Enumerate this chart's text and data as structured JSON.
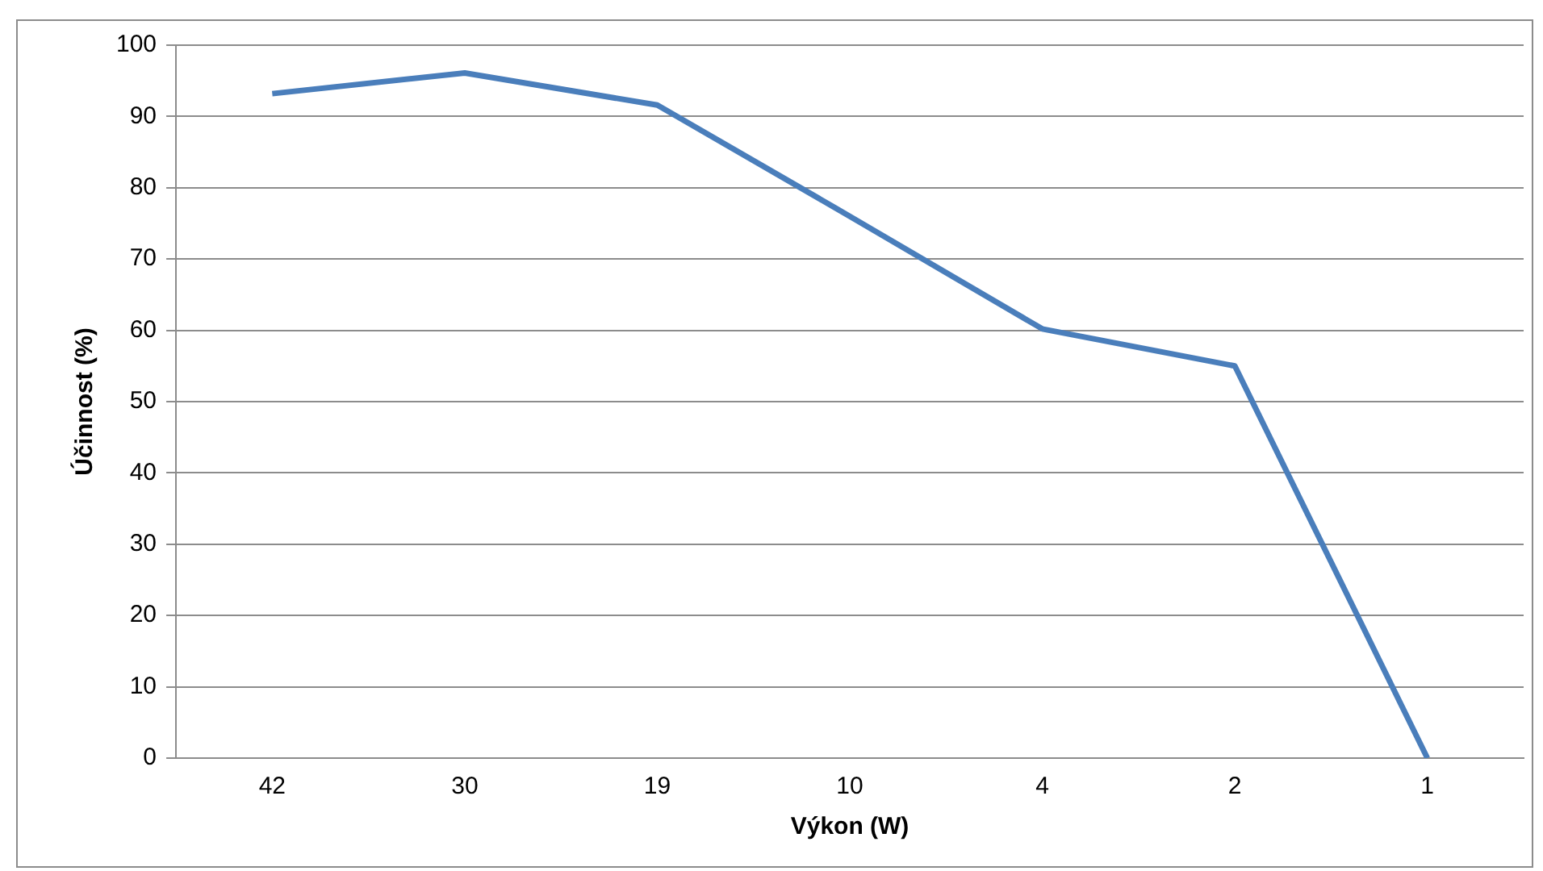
{
  "chart_data": {
    "type": "line",
    "xlabel": "Výkon (W)",
    "ylabel": "Účinnost (%)",
    "categories": [
      "42",
      "30",
      "19",
      "10",
      "4",
      "2",
      "1"
    ],
    "series": [
      {
        "color": "#4a7ebb",
        "values": [
          93.2,
          96.1,
          91.6,
          76,
          60.2,
          55,
          0
        ]
      }
    ],
    "ylim": [
      0,
      100
    ],
    "yticks": [
      0,
      10,
      20,
      30,
      40,
      50,
      60,
      70,
      80,
      90,
      100
    ],
    "grid": "y",
    "legend": false,
    "marker": "none",
    "line_style": "solid"
  }
}
